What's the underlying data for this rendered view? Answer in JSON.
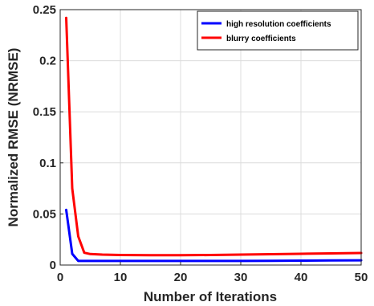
{
  "chart_data": {
    "type": "line",
    "xlabel": "Number of Iterations",
    "ylabel": "Normalized RMSE (NRMSE)",
    "xlim": [
      0,
      50
    ],
    "ylim": [
      0,
      0.25
    ],
    "xticks": [
      0,
      10,
      20,
      30,
      40,
      50
    ],
    "xtick_labels": [
      "0",
      "10",
      "20",
      "30",
      "40",
      "50"
    ],
    "yticks": [
      0,
      0.05,
      0.1,
      0.15,
      0.2,
      0.25
    ],
    "ytick_labels": [
      "0",
      "0.05",
      "0.1",
      "0.15",
      "0.2",
      "0.25"
    ],
    "grid": true,
    "legend_position": "top-right",
    "series": [
      {
        "name": "high resolution coefficients",
        "color": "#0000ff",
        "x": [
          1,
          2,
          3,
          4,
          5,
          10,
          15,
          20,
          25,
          30,
          35,
          40,
          45,
          50
        ],
        "y": [
          0.054,
          0.011,
          0.004,
          0.004,
          0.004,
          0.004,
          0.004,
          0.004,
          0.004,
          0.004,
          0.0042,
          0.0043,
          0.0045,
          0.0046
        ]
      },
      {
        "name": "blurry coefficients",
        "color": "#ff0000",
        "x": [
          1,
          2,
          3,
          4,
          5,
          7,
          10,
          15,
          20,
          25,
          30,
          35,
          40,
          45,
          50
        ],
        "y": [
          0.242,
          0.075,
          0.028,
          0.012,
          0.0108,
          0.0102,
          0.0098,
          0.0096,
          0.0096,
          0.0098,
          0.0102,
          0.0106,
          0.011,
          0.0114,
          0.0118
        ]
      }
    ]
  }
}
